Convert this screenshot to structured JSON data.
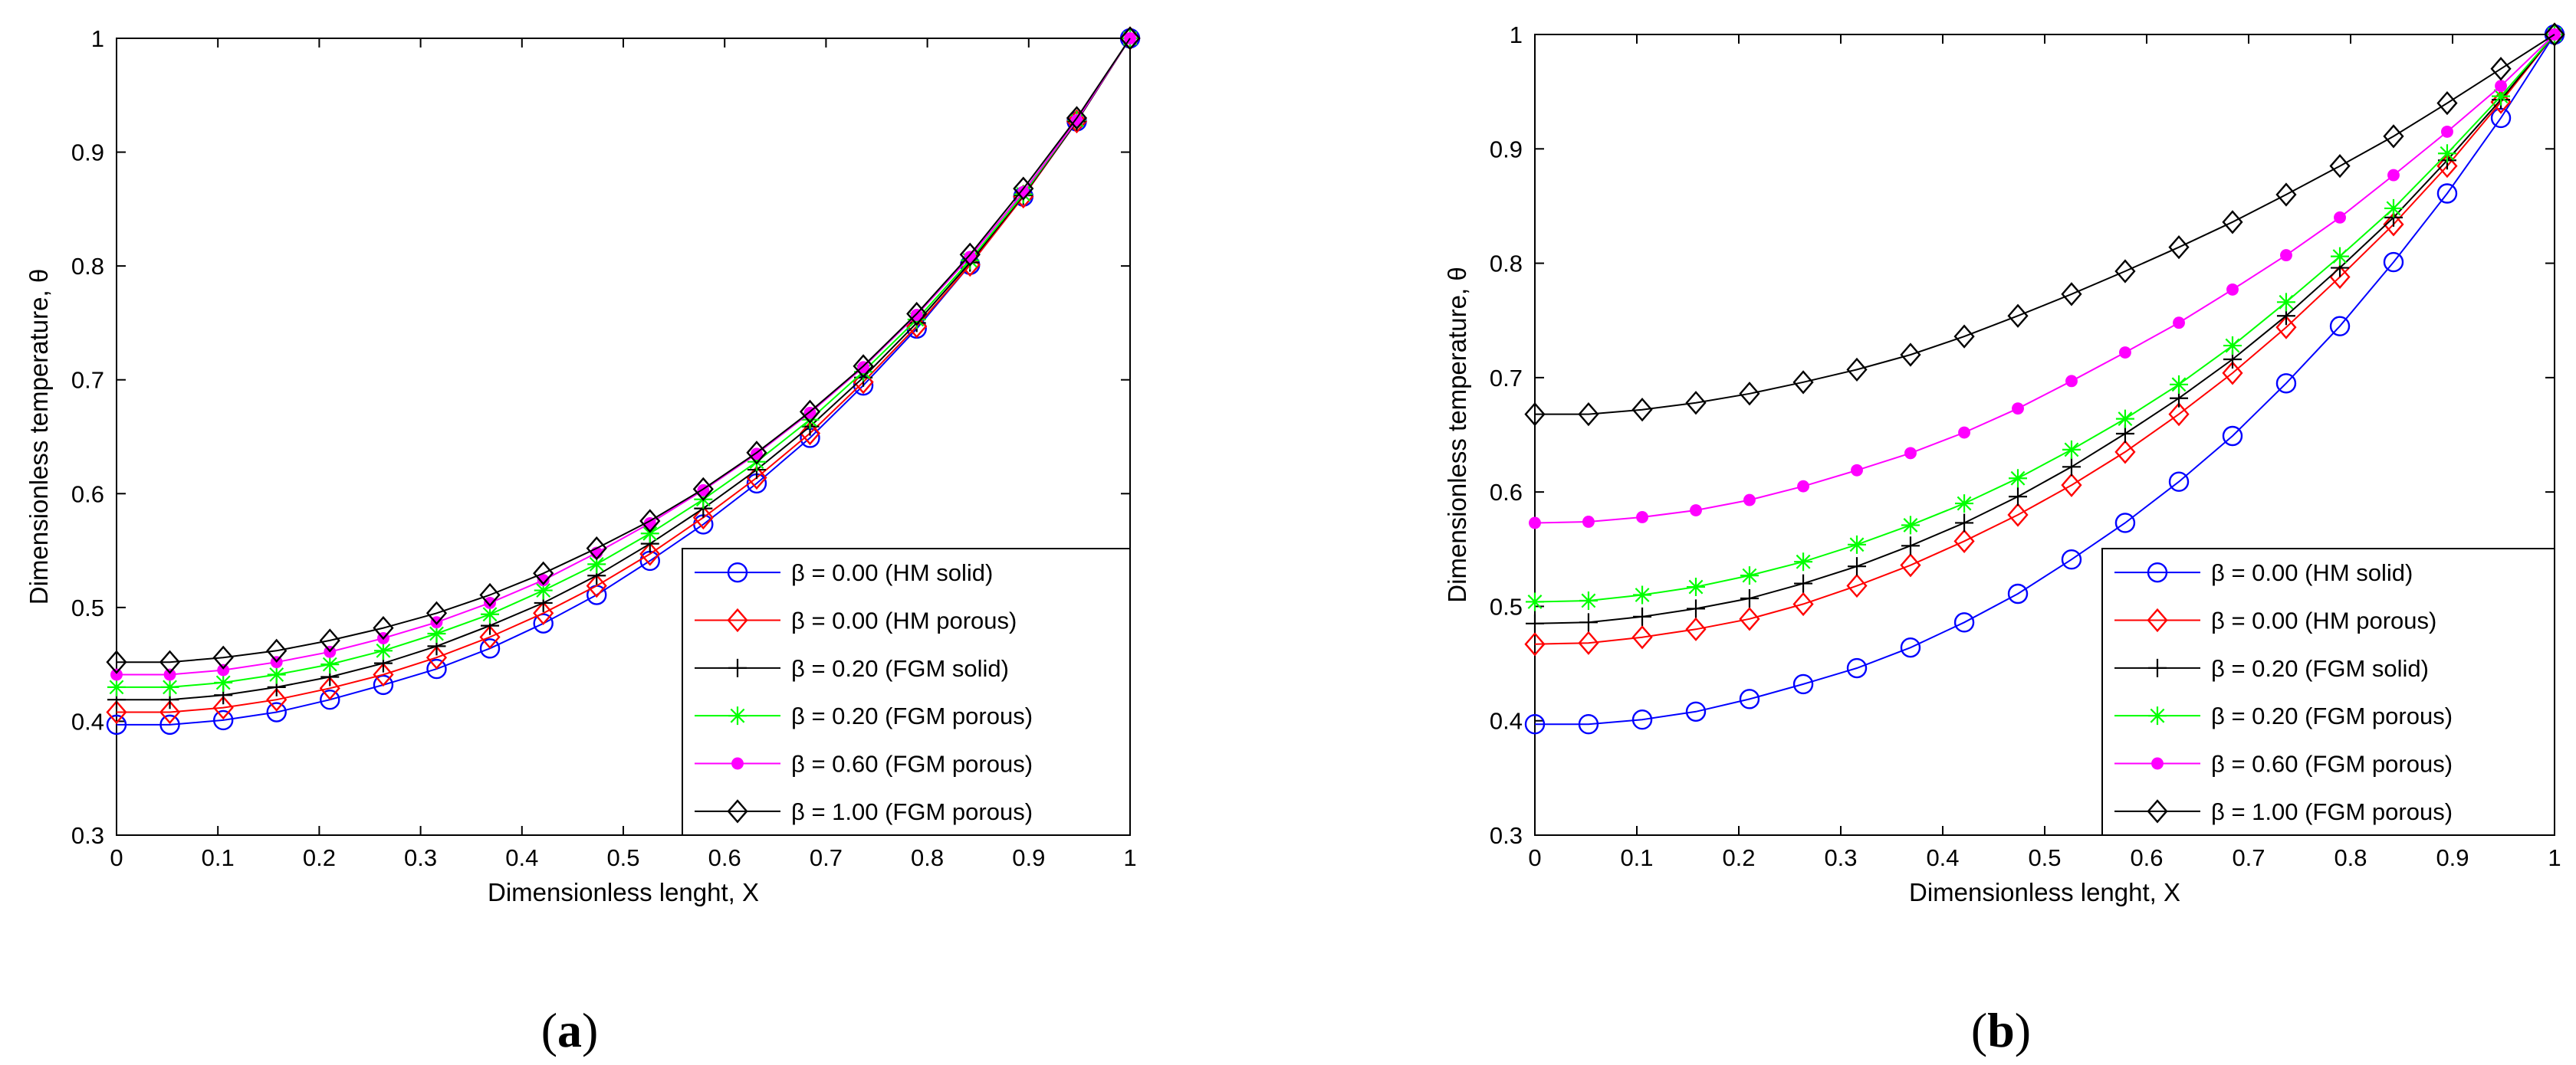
{
  "panels": [
    {
      "label_open": "(",
      "label_letter": "a",
      "label_close": ")"
    },
    {
      "label_open": "(",
      "label_letter": "b",
      "label_close": ")"
    }
  ],
  "chart_data": [
    {
      "type": "line",
      "panel": "a",
      "xlabel": "Dimensionless lenght, X",
      "ylabel": "Dimensionless temperature, θ",
      "xlim": [
        0,
        1
      ],
      "ylim": [
        0.3,
        1
      ],
      "xticks": [
        "0",
        "0.1",
        "0.2",
        "0.3",
        "0.4",
        "0.5",
        "0.6",
        "0.7",
        "0.8",
        "0.9",
        "1"
      ],
      "yticks": [
        "0.3",
        "0.4",
        "0.5",
        "0.6",
        "0.7",
        "0.8",
        "0.9",
        "1"
      ],
      "legend_position": "bottom-right",
      "x": [
        0,
        0.0526,
        0.1053,
        0.1579,
        0.2105,
        0.2632,
        0.3158,
        0.3684,
        0.4211,
        0.4737,
        0.5263,
        0.5789,
        0.6316,
        0.6842,
        0.7368,
        0.7895,
        0.8421,
        0.8947,
        0.9474,
        1.0
      ],
      "series": [
        {
          "name": "β = 0.00 (HM solid)",
          "color": "#0000ff",
          "marker": "circle",
          "values": [
            0.397,
            0.397,
            0.401,
            0.408,
            0.419,
            0.432,
            0.446,
            0.464,
            0.486,
            0.511,
            0.541,
            0.573,
            0.609,
            0.649,
            0.695,
            0.745,
            0.801,
            0.861,
            0.927,
            1.0
          ]
        },
        {
          "name": "β = 0.00 (HM porous)",
          "color": "#ff0000",
          "marker": "diamond",
          "values": [
            0.408,
            0.408,
            0.412,
            0.419,
            0.429,
            0.441,
            0.456,
            0.474,
            0.495,
            0.519,
            0.547,
            0.579,
            0.614,
            0.653,
            0.698,
            0.747,
            0.801,
            0.861,
            0.927,
            1.0
          ]
        },
        {
          "name": "β = 0.20 (FGM solid)",
          "color": "#000000",
          "marker": "plus",
          "values": [
            0.419,
            0.419,
            0.423,
            0.43,
            0.439,
            0.451,
            0.466,
            0.484,
            0.504,
            0.528,
            0.556,
            0.587,
            0.621,
            0.659,
            0.702,
            0.75,
            0.803,
            0.862,
            0.927,
            1.0
          ]
        },
        {
          "name": "β = 0.20 (FGM porous)",
          "color": "#00ff00",
          "marker": "star",
          "values": [
            0.43,
            0.43,
            0.434,
            0.441,
            0.45,
            0.462,
            0.477,
            0.494,
            0.515,
            0.538,
            0.565,
            0.595,
            0.628,
            0.665,
            0.707,
            0.753,
            0.805,
            0.863,
            0.928,
            1.0
          ]
        },
        {
          "name": "β = 0.60 (FGM porous)",
          "color": "#ff00ff",
          "marker": "dot",
          "values": [
            0.441,
            0.441,
            0.445,
            0.452,
            0.461,
            0.473,
            0.487,
            0.504,
            0.524,
            0.548,
            0.574,
            0.603,
            0.635,
            0.671,
            0.711,
            0.757,
            0.808,
            0.865,
            0.928,
            1.0
          ]
        },
        {
          "name": "β = 1.00 (FGM porous)",
          "color": "#000000",
          "marker": "diamond",
          "values": [
            0.452,
            0.452,
            0.456,
            0.462,
            0.471,
            0.482,
            0.495,
            0.511,
            0.53,
            0.552,
            0.576,
            0.604,
            0.636,
            0.672,
            0.712,
            0.758,
            0.81,
            0.868,
            0.93,
            1.0
          ]
        }
      ]
    },
    {
      "type": "line",
      "panel": "b",
      "xlabel": "Dimensionless lenght, X",
      "ylabel": "Dimensionless temperature, θ",
      "xlim": [
        0,
        1
      ],
      "ylim": [
        0.3,
        1
      ],
      "xticks": [
        "0",
        "0.1",
        "0.2",
        "0.3",
        "0.4",
        "0.5",
        "0.6",
        "0.7",
        "0.8",
        "0.9",
        "1"
      ],
      "yticks": [
        "0.3",
        "0.4",
        "0.5",
        "0.6",
        "0.7",
        "0.8",
        "0.9",
        "1"
      ],
      "legend_position": "bottom-right",
      "x": [
        0,
        0.0526,
        0.1053,
        0.1579,
        0.2105,
        0.2632,
        0.3158,
        0.3684,
        0.4211,
        0.4737,
        0.5263,
        0.5789,
        0.6316,
        0.6842,
        0.7368,
        0.7895,
        0.8421,
        0.8947,
        0.9474,
        1.0
      ],
      "series": [
        {
          "name": "β = 0.00 (HM solid)",
          "color": "#0000ff",
          "marker": "circle",
          "values": [
            0.397,
            0.397,
            0.401,
            0.408,
            0.419,
            0.432,
            0.446,
            0.464,
            0.486,
            0.511,
            0.541,
            0.573,
            0.609,
            0.649,
            0.695,
            0.745,
            0.801,
            0.861,
            0.927,
            1.0
          ]
        },
        {
          "name": "β = 0.00 (HM porous)",
          "color": "#ff0000",
          "marker": "diamond",
          "values": [
            0.467,
            0.468,
            0.473,
            0.48,
            0.489,
            0.502,
            0.518,
            0.536,
            0.557,
            0.58,
            0.606,
            0.635,
            0.668,
            0.704,
            0.744,
            0.788,
            0.834,
            0.885,
            0.941,
            1.0
          ]
        },
        {
          "name": "β = 0.20 (FGM solid)",
          "color": "#000000",
          "marker": "plus",
          "values": [
            0.485,
            0.486,
            0.491,
            0.498,
            0.507,
            0.52,
            0.535,
            0.553,
            0.573,
            0.596,
            0.622,
            0.651,
            0.682,
            0.716,
            0.754,
            0.796,
            0.84,
            0.89,
            0.943,
            1.0
          ]
        },
        {
          "name": "β = 0.20 (FGM porous)",
          "color": "#00ff00",
          "marker": "star",
          "values": [
            0.504,
            0.505,
            0.51,
            0.517,
            0.527,
            0.539,
            0.554,
            0.571,
            0.59,
            0.612,
            0.637,
            0.664,
            0.694,
            0.728,
            0.766,
            0.806,
            0.848,
            0.896,
            0.946,
            1.0
          ]
        },
        {
          "name": "β = 0.60 (FGM porous)",
          "color": "#ff00ff",
          "marker": "dot",
          "values": [
            0.573,
            0.574,
            0.578,
            0.584,
            0.593,
            0.605,
            0.619,
            0.634,
            0.652,
            0.673,
            0.697,
            0.722,
            0.748,
            0.777,
            0.807,
            0.84,
            0.877,
            0.915,
            0.955,
            1.0
          ]
        },
        {
          "name": "β = 1.00 (FGM porous)",
          "color": "#000000",
          "marker": "diamond",
          "values": [
            0.668,
            0.668,
            0.672,
            0.678,
            0.686,
            0.696,
            0.707,
            0.72,
            0.736,
            0.754,
            0.773,
            0.793,
            0.814,
            0.836,
            0.86,
            0.885,
            0.911,
            0.94,
            0.97,
            1.0
          ]
        }
      ]
    }
  ]
}
